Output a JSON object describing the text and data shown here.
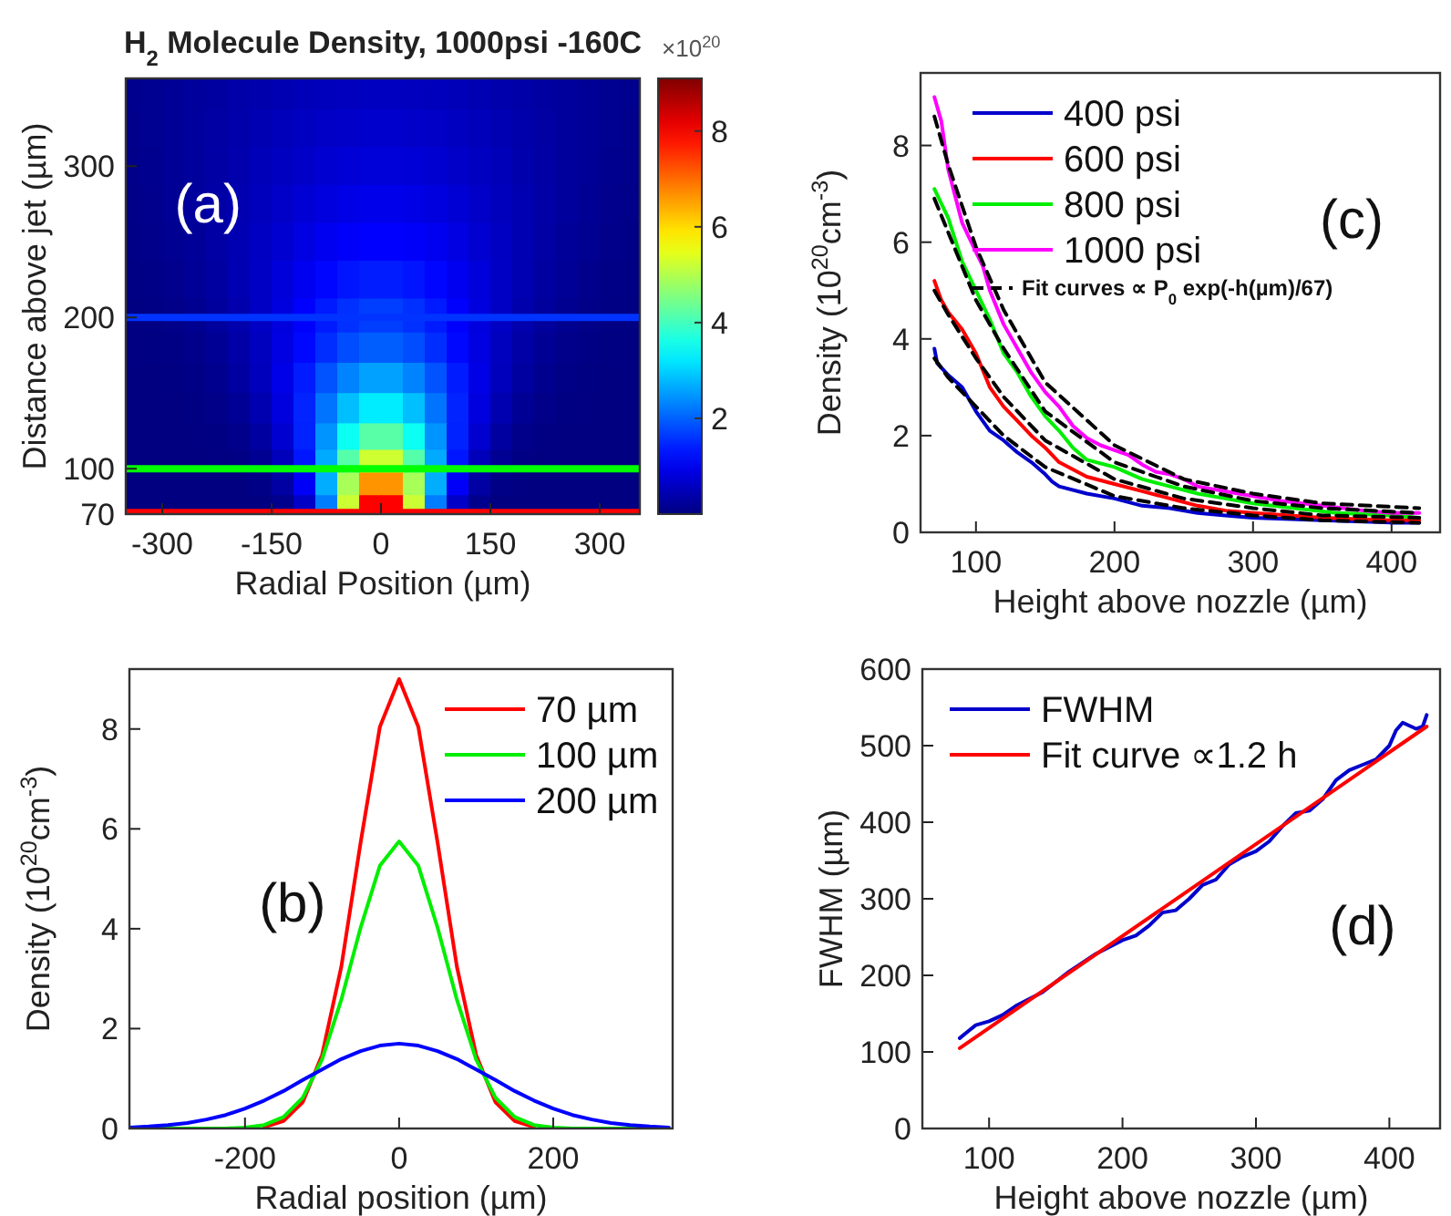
{
  "chart_data": [
    {
      "type": "heatmap",
      "title": "H$_{2}$ Molecule Density, 1000psi -160C",
      "xlabel": "Radial Position (µm)",
      "ylabel": "Distance above jet (µm)",
      "clabel": "×10$^{20}$",
      "x": [
        -345,
        -315,
        -285,
        -255,
        -225,
        -195,
        -165,
        -135,
        -105,
        -75,
        -45,
        -15,
        15,
        45,
        75,
        105,
        135,
        165,
        195,
        225,
        255,
        285,
        315,
        345
      ],
      "y": [
        350,
        325,
        300,
        275,
        250,
        225,
        200,
        180,
        160,
        140,
        120,
        105,
        90,
        75
      ],
      "cells": [
        [
          0.13,
          0.16,
          0.2,
          0.25,
          0.3,
          0.36,
          0.41,
          0.46,
          0.5,
          0.54,
          0.56,
          0.58,
          0.58,
          0.56,
          0.54,
          0.5,
          0.46,
          0.41,
          0.36,
          0.3,
          0.25,
          0.2,
          0.16,
          0.13
        ],
        [
          0.12,
          0.16,
          0.2,
          0.26,
          0.32,
          0.39,
          0.45,
          0.52,
          0.58,
          0.63,
          0.66,
          0.68,
          0.68,
          0.66,
          0.63,
          0.58,
          0.52,
          0.45,
          0.39,
          0.32,
          0.26,
          0.2,
          0.16,
          0.12
        ],
        [
          0.1,
          0.14,
          0.2,
          0.26,
          0.33,
          0.41,
          0.5,
          0.58,
          0.66,
          0.73,
          0.77,
          0.8,
          0.8,
          0.77,
          0.73,
          0.66,
          0.58,
          0.5,
          0.41,
          0.33,
          0.26,
          0.2,
          0.14,
          0.1
        ],
        [
          0.08,
          0.12,
          0.18,
          0.25,
          0.34,
          0.44,
          0.54,
          0.65,
          0.76,
          0.85,
          0.91,
          0.95,
          0.95,
          0.91,
          0.85,
          0.76,
          0.65,
          0.54,
          0.44,
          0.34,
          0.25,
          0.18,
          0.12,
          0.08
        ],
        [
          0.06,
          0.1,
          0.16,
          0.23,
          0.33,
          0.45,
          0.59,
          0.73,
          0.88,
          1.0,
          1.09,
          1.14,
          1.14,
          1.09,
          1.0,
          0.88,
          0.73,
          0.59,
          0.45,
          0.33,
          0.23,
          0.16,
          0.1,
          0.06
        ],
        [
          0.04,
          0.07,
          0.12,
          0.2,
          0.3,
          0.45,
          0.62,
          0.81,
          1.0,
          1.18,
          1.32,
          1.39,
          1.39,
          1.32,
          1.18,
          1.0,
          0.81,
          0.62,
          0.45,
          0.3,
          0.2,
          0.12,
          0.07,
          0.04
        ],
        [
          0.02,
          0.04,
          0.08,
          0.15,
          0.25,
          0.4,
          0.61,
          0.85,
          1.12,
          1.37,
          1.57,
          1.69,
          1.69,
          1.57,
          1.37,
          1.12,
          0.85,
          0.61,
          0.4,
          0.25,
          0.15,
          0.08,
          0.04,
          0.02
        ],
        [
          0.01,
          0.02,
          0.05,
          0.1,
          0.19,
          0.34,
          0.57,
          0.86,
          1.2,
          1.54,
          1.82,
          1.98,
          1.98,
          1.82,
          1.54,
          1.2,
          0.86,
          0.57,
          0.34,
          0.19,
          0.1,
          0.05,
          0.02,
          0.01
        ],
        [
          0,
          0.01,
          0.02,
          0.06,
          0.14,
          0.29,
          0.54,
          0.91,
          1.38,
          1.88,
          2.31,
          2.57,
          2.57,
          2.31,
          1.88,
          1.38,
          0.91,
          0.54,
          0.29,
          0.14,
          0.06,
          0.02,
          0.01,
          0
        ],
        [
          0,
          0,
          0.01,
          0.03,
          0.08,
          0.19,
          0.44,
          0.85,
          1.45,
          2.17,
          2.84,
          3.24,
          3.24,
          2.84,
          2.17,
          1.45,
          0.85,
          0.44,
          0.19,
          0.08,
          0.03,
          0.01,
          0,
          0
        ],
        [
          0,
          0,
          0,
          0.01,
          0.03,
          0.1,
          0.29,
          0.71,
          1.44,
          2.46,
          3.52,
          4.2,
          4.2,
          3.52,
          2.46,
          1.44,
          0.71,
          0.29,
          0.1,
          0.03,
          0.01,
          0,
          0,
          0
        ],
        [
          0,
          0,
          0,
          0,
          0.01,
          0.04,
          0.17,
          0.53,
          1.33,
          2.65,
          4.17,
          5.25,
          5.25,
          4.17,
          2.65,
          1.33,
          0.53,
          0.17,
          0.04,
          0.01,
          0,
          0,
          0,
          0
        ],
        [
          0,
          0,
          0,
          0,
          0,
          0.01,
          0.07,
          0.32,
          1.08,
          2.68,
          4.91,
          6.64,
          6.64,
          4.91,
          2.68,
          1.08,
          0.32,
          0.07,
          0.01,
          0,
          0,
          0,
          0,
          0
        ],
        [
          0,
          0,
          0,
          0,
          0,
          0,
          0.01,
          0.12,
          0.64,
          2.25,
          5.23,
          7.97,
          7.97,
          5.23,
          2.25,
          0.64,
          0.12,
          0.01,
          0,
          0,
          0,
          0,
          0,
          0
        ]
      ],
      "xlim": [
        -350,
        355
      ],
      "xticks": [
        -300,
        -150,
        0,
        150,
        300
      ],
      "ylim": [
        70,
        358
      ],
      "yticks": [
        70,
        100,
        200,
        300
      ],
      "clim": [
        0,
        9.1
      ],
      "cticks": [
        2,
        4,
        6,
        8
      ],
      "ref_lines": [
        {
          "axis": "y",
          "value": 200,
          "color": "#0033ff"
        },
        {
          "axis": "y",
          "value": 100,
          "color": "#00ff00"
        },
        {
          "axis": "y",
          "value": 71,
          "color": "#ff0000"
        }
      ],
      "annotations": [
        "(a)"
      ]
    },
    {
      "type": "line",
      "xlabel": "Height above nozzle (µm)",
      "ylabel": "Density (10$^{20}$cm$^{-3}$)",
      "xlim": [
        60,
        435
      ],
      "xticks": [
        100,
        200,
        300,
        400
      ],
      "ylim": [
        0,
        9.5
      ],
      "yticks": [
        0,
        2,
        4,
        6,
        8
      ],
      "legend": "top",
      "grid": false,
      "series": [
        {
          "name": "400 psi",
          "color": "#0000cc",
          "x": [
            70,
            72,
            80,
            90,
            100,
            110,
            120,
            130,
            140,
            150,
            155,
            160,
            180,
            200,
            220,
            240,
            260,
            280,
            300,
            350,
            400,
            420
          ],
          "values": [
            3.8,
            3.5,
            3.25,
            3.0,
            2.5,
            2.1,
            1.9,
            1.65,
            1.45,
            1.2,
            1.05,
            0.95,
            0.8,
            0.7,
            0.55,
            0.5,
            0.4,
            0.35,
            0.3,
            0.25,
            0.2,
            0.2
          ]
        },
        {
          "name": "600 psi",
          "color": "#ff0000",
          "x": [
            70,
            75,
            80,
            90,
            100,
            110,
            120,
            130,
            140,
            150,
            160,
            170,
            180,
            200,
            220,
            240,
            260,
            280,
            300,
            350,
            400,
            420
          ],
          "values": [
            5.2,
            4.8,
            4.55,
            4.2,
            3.7,
            3.0,
            2.6,
            2.3,
            2.0,
            1.75,
            1.45,
            1.3,
            1.15,
            1.0,
            0.85,
            0.7,
            0.55,
            0.45,
            0.4,
            0.3,
            0.25,
            0.25
          ]
        },
        {
          "name": "800 psi",
          "color": "#00ee00",
          "x": [
            70,
            80,
            90,
            100,
            110,
            120,
            130,
            140,
            150,
            160,
            170,
            180,
            200,
            220,
            240,
            260,
            280,
            300,
            330,
            360,
            400,
            420
          ],
          "values": [
            7.1,
            6.5,
            5.6,
            5.0,
            4.4,
            3.7,
            3.3,
            2.8,
            2.4,
            2.1,
            1.75,
            1.5,
            1.35,
            1.1,
            0.95,
            0.8,
            0.7,
            0.6,
            0.5,
            0.4,
            0.35,
            0.3
          ]
        },
        {
          "name": "1000 psi",
          "color": "#ff00ff",
          "x": [
            70,
            75,
            80,
            90,
            100,
            105,
            110,
            120,
            130,
            140,
            150,
            160,
            170,
            180,
            190,
            200,
            210,
            220,
            230,
            240,
            250,
            260,
            280,
            300,
            320,
            350,
            380,
            400,
            420
          ],
          "values": [
            9.0,
            8.5,
            7.5,
            6.4,
            5.8,
            5.5,
            5.0,
            4.3,
            3.8,
            3.3,
            2.9,
            2.6,
            2.2,
            1.95,
            1.8,
            1.7,
            1.6,
            1.4,
            1.25,
            1.2,
            1.1,
            0.95,
            0.85,
            0.75,
            0.65,
            0.55,
            0.45,
            0.4,
            0.4
          ]
        },
        {
          "name": "Fit curves ∝ P$_{0}$ exp(-h(µm)/67)",
          "color": "#000000",
          "line_style": "dashed",
          "x": [
            70,
            80,
            100,
            120,
            150,
            200,
            250,
            300,
            350,
            420
          ],
          "values": [
            8.6,
            7.6,
            5.9,
            4.6,
            3.1,
            1.8,
            1.1,
            0.8,
            0.6,
            0.5
          ]
        },
        {
          "color": "#000000",
          "line_style": "dashed",
          "x": [
            70,
            80,
            100,
            120,
            150,
            200,
            250,
            300,
            350,
            420
          ],
          "values": [
            6.9,
            6.2,
            4.8,
            3.8,
            2.5,
            1.45,
            0.95,
            0.65,
            0.5,
            0.4
          ]
        },
        {
          "color": "#000000",
          "line_style": "dashed",
          "x": [
            70,
            80,
            100,
            120,
            150,
            200,
            250,
            300,
            350,
            420
          ],
          "values": [
            5.0,
            4.5,
            3.6,
            2.8,
            1.9,
            1.1,
            0.7,
            0.5,
            0.35,
            0.3
          ]
        },
        {
          "color": "#000000",
          "line_style": "dashed",
          "x": [
            70,
            80,
            100,
            120,
            150,
            200,
            250,
            300,
            350,
            420
          ],
          "values": [
            3.6,
            3.2,
            2.6,
            2.0,
            1.35,
            0.75,
            0.5,
            0.35,
            0.25,
            0.2
          ]
        }
      ],
      "annotations": [
        "(c)"
      ]
    },
    {
      "type": "line",
      "xlabel": "Radial position (µm)",
      "ylabel": "Density (10$^{20}$cm$^{-3}$)",
      "xlim": [
        -350,
        355
      ],
      "xticks": [
        -200,
        0,
        200
      ],
      "ylim": [
        0,
        9.2
      ],
      "yticks": [
        0,
        2,
        4,
        6,
        8
      ],
      "legend": "top right",
      "grid": false,
      "x": [
        -350,
        -325,
        -300,
        -275,
        -250,
        -225,
        -200,
        -175,
        -150,
        -125,
        -100,
        -75,
        -50,
        -25,
        0,
        25,
        50,
        75,
        100,
        125,
        150,
        175,
        200,
        225,
        250,
        275,
        300,
        325,
        350
      ],
      "series": [
        {
          "name": "70 µm",
          "color": "#ff0000",
          "values": [
            null,
            null,
            null,
            null,
            null,
            null,
            null,
            0.03,
            0.15,
            0.53,
            1.47,
            3.24,
            5.72,
            8.04,
            9,
            8.04,
            5.72,
            3.24,
            1.47,
            0.53,
            0.15,
            0.03,
            null,
            null,
            null,
            null,
            null,
            null,
            null
          ]
        },
        {
          "name": "100 µm",
          "color": "#00ee00",
          "values": [
            0,
            0,
            0,
            0,
            0,
            0,
            0.02,
            0.07,
            0.23,
            0.62,
            1.38,
            2.58,
            4.02,
            5.26,
            5.75,
            5.26,
            4.02,
            2.58,
            1.38,
            0.62,
            0.23,
            0.07,
            0.02,
            0,
            0,
            0,
            0,
            0,
            0
          ]
        },
        {
          "name": "200 µm",
          "color": "#0000ff",
          "values": [
            0.02,
            0.04,
            0.07,
            0.11,
            0.18,
            0.27,
            0.4,
            0.56,
            0.75,
            0.97,
            1.18,
            1.39,
            1.55,
            1.66,
            1.7,
            1.66,
            1.55,
            1.39,
            1.18,
            0.97,
            0.75,
            0.56,
            0.4,
            0.27,
            0.18,
            0.11,
            0.07,
            0.04,
            0.02
          ]
        }
      ],
      "annotations": [
        "(b)"
      ]
    },
    {
      "type": "line",
      "xlabel": "Height above nozzle (µm)",
      "ylabel": "FWHM (µm)",
      "xlim": [
        50,
        438
      ],
      "xticks": [
        100,
        200,
        300,
        400
      ],
      "ylim": [
        0,
        600
      ],
      "yticks": [
        0,
        100,
        200,
        300,
        400,
        500,
        600
      ],
      "legend": "top left",
      "grid": false,
      "series": [
        {
          "name": "FWHM",
          "color": "#0000cc",
          "x": [
            78,
            85,
            90,
            100,
            110,
            120,
            140,
            160,
            180,
            200,
            210,
            220,
            230,
            240,
            250,
            260,
            270,
            280,
            290,
            300,
            310,
            320,
            330,
            340,
            350,
            360,
            370,
            380,
            390,
            400,
            405,
            410,
            420,
            425,
            428
          ],
          "values": [
            118,
            128,
            135,
            140,
            148,
            160,
            178,
            205,
            228,
            246,
            252,
            265,
            282,
            285,
            300,
            318,
            325,
            345,
            355,
            362,
            375,
            395,
            412,
            415,
            430,
            455,
            468,
            475,
            482,
            500,
            520,
            530,
            522,
            525,
            540
          ]
        },
        {
          "name": "Fit curve  ∝1.2 h",
          "color": "#ff0000",
          "x": [
            78,
            428
          ],
          "values": [
            105,
            525
          ]
        }
      ],
      "annotations": [
        "(d)"
      ]
    }
  ]
}
